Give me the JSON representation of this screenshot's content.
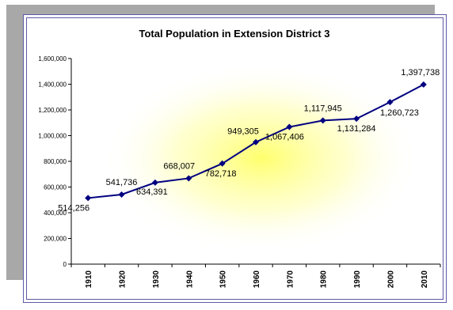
{
  "chart_data": {
    "type": "line",
    "title": "Total Population in Extension District 3",
    "xlabel": "",
    "ylabel": "",
    "categories": [
      "1910",
      "1920",
      "1930",
      "1940",
      "1950",
      "1960",
      "1970",
      "1980",
      "1990",
      "2000",
      "2010"
    ],
    "values": [
      514256,
      541736,
      634391,
      668007,
      782718,
      949305,
      1067406,
      1117945,
      1131284,
      1260723,
      1397738
    ],
    "data_labels": [
      "514,256",
      "541,736",
      "634,391",
      "668,007",
      "782,718",
      "949,305",
      "1,067,406",
      "1,117,945",
      "1,131,284",
      "1,260,723",
      "1,397,738"
    ],
    "ylim": [
      0,
      1600000
    ],
    "yticks": [
      0,
      200000,
      400000,
      600000,
      800000,
      1000000,
      1200000,
      1400000,
      1600000
    ],
    "ytick_labels": [
      "0",
      "200,000",
      "400,000",
      "600,000",
      "800,000",
      "1,000,000",
      "1,200,000",
      "1,400,000",
      "1,600,000"
    ],
    "grid": false,
    "legend": "none",
    "colors": {
      "line": "#000080",
      "marker": "#000080",
      "plot_glow": "#ffff66",
      "frame": "#5a5aa8",
      "shadow": "#a8a8a8"
    }
  }
}
